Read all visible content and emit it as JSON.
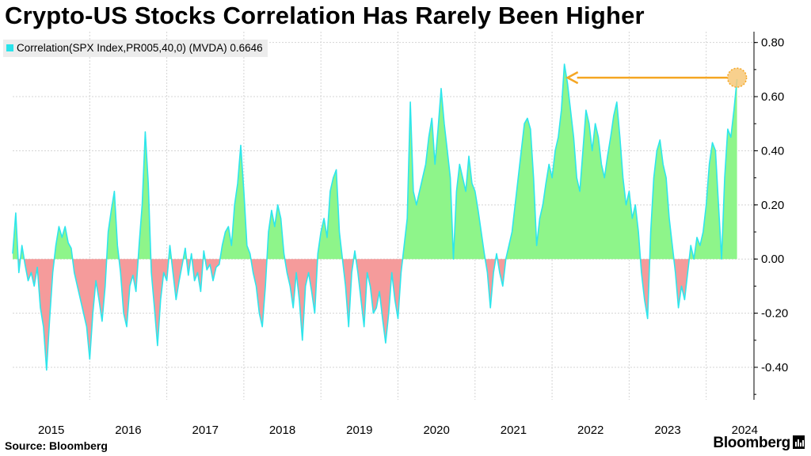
{
  "title": "Crypto-US Stocks Correlation Has Rarely Been Higher",
  "legend": {
    "label": "Correlation(SPX Index,PR005,40,0) (MVDA) 0.6646",
    "color": "#29e3ea"
  },
  "source": "Source: Bloomberg",
  "brand": "Bloomberg",
  "colors": {
    "line": "#2ee6ec",
    "positive_fill": "#8ef58a",
    "negative_fill": "#f59b9b",
    "annotation": "#f5a623"
  },
  "chart_data": {
    "type": "area",
    "xlim": [
      2015.0,
      2024.62
    ],
    "ylim": [
      -0.52,
      0.84
    ],
    "grid": true,
    "x_ticks": [
      {
        "label": "2015",
        "value": 2015.0
      },
      {
        "label": "2016",
        "value": 2016.0
      },
      {
        "label": "2017",
        "value": 2017.0
      },
      {
        "label": "2018",
        "value": 2018.0
      },
      {
        "label": "2019",
        "value": 2019.0
      },
      {
        "label": "2020",
        "value": 2020.0
      },
      {
        "label": "2021",
        "value": 2021.0
      },
      {
        "label": "2022",
        "value": 2022.0
      },
      {
        "label": "2023",
        "value": 2023.0
      },
      {
        "label": "2024",
        "value": 2024.0
      }
    ],
    "y_ticks": [
      {
        "label": "0.80",
        "value": 0.8
      },
      {
        "label": "0.60",
        "value": 0.6
      },
      {
        "label": "0.40",
        "value": 0.4
      },
      {
        "label": "0.20",
        "value": 0.2
      },
      {
        "label": "0.00",
        "value": 0.0
      },
      {
        "label": "-0.20",
        "value": -0.2
      },
      {
        "label": "-0.40",
        "value": -0.4
      }
    ],
    "series": [
      {
        "name": "Correlation(SPX Index,PR005,40,0) (MVDA)",
        "last_value": 0.6646,
        "points": [
          [
            2015.0,
            0.02
          ],
          [
            2015.04,
            0.17
          ],
          [
            2015.08,
            -0.05
          ],
          [
            2015.12,
            0.05
          ],
          [
            2015.16,
            -0.02
          ],
          [
            2015.2,
            -0.08
          ],
          [
            2015.24,
            -0.05
          ],
          [
            2015.28,
            -0.1
          ],
          [
            2015.32,
            -0.03
          ],
          [
            2015.36,
            -0.18
          ],
          [
            2015.4,
            -0.25
          ],
          [
            2015.44,
            -0.41
          ],
          [
            2015.48,
            -0.22
          ],
          [
            2015.52,
            -0.05
          ],
          [
            2015.56,
            0.05
          ],
          [
            2015.6,
            0.12
          ],
          [
            2015.64,
            0.08
          ],
          [
            2015.68,
            0.12
          ],
          [
            2015.72,
            0.06
          ],
          [
            2015.76,
            0.04
          ],
          [
            2015.8,
            -0.05
          ],
          [
            2015.84,
            -0.1
          ],
          [
            2015.88,
            -0.15
          ],
          [
            2015.92,
            -0.2
          ],
          [
            2015.96,
            -0.25
          ],
          [
            2016.0,
            -0.37
          ],
          [
            2016.04,
            -0.2
          ],
          [
            2016.08,
            -0.08
          ],
          [
            2016.12,
            -0.15
          ],
          [
            2016.16,
            -0.23
          ],
          [
            2016.2,
            -0.1
          ],
          [
            2016.24,
            0.1
          ],
          [
            2016.28,
            0.18
          ],
          [
            2016.32,
            0.25
          ],
          [
            2016.36,
            0.05
          ],
          [
            2016.4,
            -0.05
          ],
          [
            2016.44,
            -0.2
          ],
          [
            2016.48,
            -0.25
          ],
          [
            2016.52,
            -0.1
          ],
          [
            2016.56,
            -0.06
          ],
          [
            2016.6,
            -0.12
          ],
          [
            2016.64,
            0.05
          ],
          [
            2016.68,
            0.2
          ],
          [
            2016.72,
            0.47
          ],
          [
            2016.76,
            0.28
          ],
          [
            2016.8,
            -0.05
          ],
          [
            2016.84,
            -0.18
          ],
          [
            2016.88,
            -0.32
          ],
          [
            2016.92,
            -0.15
          ],
          [
            2016.96,
            -0.05
          ],
          [
            2017.0,
            -0.08
          ],
          [
            2017.04,
            0.05
          ],
          [
            2017.08,
            -0.05
          ],
          [
            2017.12,
            -0.15
          ],
          [
            2017.16,
            -0.08
          ],
          [
            2017.2,
            -0.02
          ],
          [
            2017.24,
            0.04
          ],
          [
            2017.28,
            -0.06
          ],
          [
            2017.32,
            0.02
          ],
          [
            2017.36,
            -0.08
          ],
          [
            2017.4,
            -0.05
          ],
          [
            2017.44,
            -0.12
          ],
          [
            2017.48,
            0.03
          ],
          [
            2017.52,
            -0.04
          ],
          [
            2017.56,
            -0.02
          ],
          [
            2017.6,
            -0.08
          ],
          [
            2017.64,
            -0.03
          ],
          [
            2017.68,
            -0.02
          ],
          [
            2017.72,
            0.05
          ],
          [
            2017.76,
            0.1
          ],
          [
            2017.8,
            0.12
          ],
          [
            2017.84,
            0.05
          ],
          [
            2017.88,
            0.2
          ],
          [
            2017.92,
            0.28
          ],
          [
            2017.96,
            0.42
          ],
          [
            2018.0,
            0.25
          ],
          [
            2018.04,
            0.05
          ],
          [
            2018.08,
            0.02
          ],
          [
            2018.12,
            -0.05
          ],
          [
            2018.16,
            -0.1
          ],
          [
            2018.2,
            -0.2
          ],
          [
            2018.24,
            -0.25
          ],
          [
            2018.28,
            -0.1
          ],
          [
            2018.32,
            0.1
          ],
          [
            2018.36,
            0.18
          ],
          [
            2018.4,
            0.12
          ],
          [
            2018.44,
            0.2
          ],
          [
            2018.48,
            0.15
          ],
          [
            2018.52,
            0.02
          ],
          [
            2018.56,
            -0.05
          ],
          [
            2018.6,
            -0.1
          ],
          [
            2018.64,
            -0.18
          ],
          [
            2018.68,
            -0.05
          ],
          [
            2018.72,
            -0.15
          ],
          [
            2018.76,
            -0.3
          ],
          [
            2018.8,
            -0.1
          ],
          [
            2018.84,
            -0.05
          ],
          [
            2018.88,
            -0.12
          ],
          [
            2018.92,
            -0.2
          ],
          [
            2018.96,
            0.02
          ],
          [
            2019.0,
            0.1
          ],
          [
            2019.04,
            0.15
          ],
          [
            2019.08,
            0.08
          ],
          [
            2019.12,
            0.25
          ],
          [
            2019.16,
            0.3
          ],
          [
            2019.2,
            0.33
          ],
          [
            2019.24,
            0.1
          ],
          [
            2019.28,
            0.0
          ],
          [
            2019.32,
            -0.1
          ],
          [
            2019.36,
            -0.25
          ],
          [
            2019.4,
            -0.05
          ],
          [
            2019.44,
            0.03
          ],
          [
            2019.48,
            -0.05
          ],
          [
            2019.52,
            -0.15
          ],
          [
            2019.56,
            -0.25
          ],
          [
            2019.6,
            -0.05
          ],
          [
            2019.64,
            -0.1
          ],
          [
            2019.68,
            -0.2
          ],
          [
            2019.72,
            -0.18
          ],
          [
            2019.76,
            -0.12
          ],
          [
            2019.8,
            -0.22
          ],
          [
            2019.84,
            -0.31
          ],
          [
            2019.88,
            -0.2
          ],
          [
            2019.92,
            -0.05
          ],
          [
            2019.96,
            -0.15
          ],
          [
            2020.0,
            -0.22
          ],
          [
            2020.04,
            -0.05
          ],
          [
            2020.08,
            0.05
          ],
          [
            2020.12,
            0.15
          ],
          [
            2020.16,
            0.58
          ],
          [
            2020.2,
            0.25
          ],
          [
            2020.24,
            0.2
          ],
          [
            2020.28,
            0.25
          ],
          [
            2020.32,
            0.3
          ],
          [
            2020.36,
            0.35
          ],
          [
            2020.4,
            0.45
          ],
          [
            2020.44,
            0.52
          ],
          [
            2020.48,
            0.35
          ],
          [
            2020.52,
            0.48
          ],
          [
            2020.56,
            0.63
          ],
          [
            2020.6,
            0.5
          ],
          [
            2020.64,
            0.4
          ],
          [
            2020.68,
            0.3
          ],
          [
            2020.72,
            0.0
          ],
          [
            2020.76,
            0.25
          ],
          [
            2020.8,
            0.35
          ],
          [
            2020.84,
            0.3
          ],
          [
            2020.88,
            0.25
          ],
          [
            2020.92,
            0.38
          ],
          [
            2020.96,
            0.28
          ],
          [
            2021.0,
            0.25
          ],
          [
            2021.04,
            0.18
          ],
          [
            2021.08,
            0.1
          ],
          [
            2021.12,
            0.02
          ],
          [
            2021.16,
            -0.05
          ],
          [
            2021.2,
            -0.18
          ],
          [
            2021.24,
            -0.05
          ],
          [
            2021.28,
            0.02
          ],
          [
            2021.32,
            -0.05
          ],
          [
            2021.36,
            -0.1
          ],
          [
            2021.4,
            0.0
          ],
          [
            2021.44,
            0.05
          ],
          [
            2021.48,
            0.1
          ],
          [
            2021.52,
            0.2
          ],
          [
            2021.56,
            0.3
          ],
          [
            2021.6,
            0.4
          ],
          [
            2021.64,
            0.5
          ],
          [
            2021.68,
            0.52
          ],
          [
            2021.72,
            0.48
          ],
          [
            2021.76,
            0.3
          ],
          [
            2021.8,
            0.05
          ],
          [
            2021.84,
            0.15
          ],
          [
            2021.88,
            0.2
          ],
          [
            2021.92,
            0.28
          ],
          [
            2021.96,
            0.35
          ],
          [
            2022.0,
            0.3
          ],
          [
            2022.04,
            0.4
          ],
          [
            2022.08,
            0.45
          ],
          [
            2022.12,
            0.55
          ],
          [
            2022.16,
            0.72
          ],
          [
            2022.2,
            0.65
          ],
          [
            2022.24,
            0.55
          ],
          [
            2022.28,
            0.45
          ],
          [
            2022.32,
            0.3
          ],
          [
            2022.36,
            0.25
          ],
          [
            2022.4,
            0.4
          ],
          [
            2022.44,
            0.55
          ],
          [
            2022.48,
            0.5
          ],
          [
            2022.52,
            0.4
          ],
          [
            2022.56,
            0.5
          ],
          [
            2022.6,
            0.45
          ],
          [
            2022.64,
            0.35
          ],
          [
            2022.68,
            0.3
          ],
          [
            2022.72,
            0.38
          ],
          [
            2022.76,
            0.45
          ],
          [
            2022.8,
            0.53
          ],
          [
            2022.84,
            0.58
          ],
          [
            2022.88,
            0.45
          ],
          [
            2022.92,
            0.3
          ],
          [
            2022.96,
            0.2
          ],
          [
            2023.0,
            0.25
          ],
          [
            2023.04,
            0.15
          ],
          [
            2023.08,
            0.2
          ],
          [
            2023.12,
            0.1
          ],
          [
            2023.16,
            -0.05
          ],
          [
            2023.2,
            -0.15
          ],
          [
            2023.24,
            -0.22
          ],
          [
            2023.28,
            0.1
          ],
          [
            2023.32,
            0.3
          ],
          [
            2023.36,
            0.4
          ],
          [
            2023.4,
            0.44
          ],
          [
            2023.44,
            0.35
          ],
          [
            2023.48,
            0.3
          ],
          [
            2023.52,
            0.15
          ],
          [
            2023.56,
            0.05
          ],
          [
            2023.6,
            -0.05
          ],
          [
            2023.64,
            -0.18
          ],
          [
            2023.68,
            -0.1
          ],
          [
            2023.72,
            -0.15
          ],
          [
            2023.76,
            -0.05
          ],
          [
            2023.8,
            0.05
          ],
          [
            2023.84,
            0.0
          ],
          [
            2023.88,
            0.08
          ],
          [
            2023.92,
            0.05
          ],
          [
            2023.96,
            0.1
          ],
          [
            2024.0,
            0.2
          ],
          [
            2024.04,
            0.35
          ],
          [
            2024.08,
            0.43
          ],
          [
            2024.12,
            0.4
          ],
          [
            2024.16,
            0.2
          ],
          [
            2024.2,
            0.0
          ],
          [
            2024.24,
            0.3
          ],
          [
            2024.28,
            0.48
          ],
          [
            2024.32,
            0.45
          ],
          [
            2024.36,
            0.55
          ],
          [
            2024.4,
            0.6646
          ]
        ]
      }
    ],
    "annotation": {
      "type": "arrow",
      "from": [
        2024.4,
        0.67
      ],
      "to": [
        2022.16,
        0.67
      ],
      "marker_at": [
        2024.4,
        0.67
      ]
    }
  }
}
